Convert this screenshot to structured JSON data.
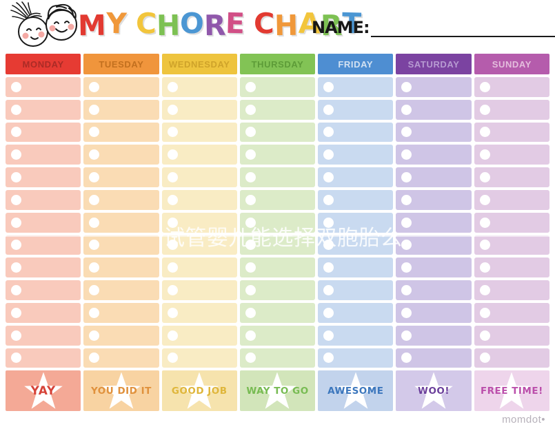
{
  "header": {
    "title_letters": [
      {
        "ch": "M",
        "color": "#e23a31"
      },
      {
        "ch": "Y",
        "color": "#f0983a"
      },
      {
        "ch": " "
      },
      {
        "ch": "C",
        "color": "#f2c53c"
      },
      {
        "ch": "H",
        "color": "#7dc153"
      },
      {
        "ch": "O",
        "color": "#4b96d3"
      },
      {
        "ch": "R",
        "color": "#9058ab"
      },
      {
        "ch": "E",
        "color": "#d14f86"
      },
      {
        "ch": " "
      },
      {
        "ch": "C",
        "color": "#e23a31"
      },
      {
        "ch": "H",
        "color": "#f0983a"
      },
      {
        "ch": "A",
        "color": "#f2c53c"
      },
      {
        "ch": "R",
        "color": "#7dc153"
      },
      {
        "ch": "T",
        "color": "#4b96d3"
      }
    ],
    "name_label": "NAME:",
    "name_value": ""
  },
  "grid": {
    "rows_per_day": 13,
    "days": [
      {
        "label": "MONDAY",
        "header_bg": "#e63b33",
        "header_text": "#ab2b26",
        "cell_bg": "#f9cabc",
        "star_bg": "#f4a996",
        "award": "YAY",
        "award_color": "#d64339"
      },
      {
        "label": "TUESDAY",
        "header_bg": "#f0953c",
        "header_text": "#c2701f",
        "cell_bg": "#fadcb4",
        "star_bg": "#f8d3a2",
        "award": "YOU DID IT",
        "award_color": "#e0913c"
      },
      {
        "label": "WEDNESDAY",
        "header_bg": "#eec43e",
        "header_text": "#cfa32a",
        "cell_bg": "#f9ecc4",
        "star_bg": "#f6e3ad",
        "award": "GOOD JOB",
        "award_color": "#dfb63a"
      },
      {
        "label": "THURSDAY",
        "header_bg": "#82c355",
        "header_text": "#5d9c38",
        "cell_bg": "#dcebc8",
        "star_bg": "#d2e5ba",
        "award": "WAY TO GO",
        "award_color": "#77bb52"
      },
      {
        "label": "FRIDAY",
        "header_bg": "#4e8ed2",
        "header_text": "#d3e2f2",
        "cell_bg": "#c9daf0",
        "star_bg": "#c2d3ec",
        "award": "AWESOME",
        "award_color": "#3c77bd"
      },
      {
        "label": "SATURDAY",
        "header_bg": "#7b43a1",
        "header_text": "#b79bd2",
        "cell_bg": "#cfc5e6",
        "star_bg": "#d3c9e9",
        "award": "WOO!",
        "award_color": "#6b3f9b"
      },
      {
        "label": "SUNDAY",
        "header_bg": "#b55cac",
        "header_text": "#e4bedd",
        "cell_bg": "#e2cbe4",
        "star_bg": "#eed5eb",
        "award": "FREE TIME!",
        "award_color": "#bb4fab"
      }
    ]
  },
  "watermark": "试管婴儿能选择双胞胎么",
  "footer": {
    "brand": "momdot•"
  }
}
